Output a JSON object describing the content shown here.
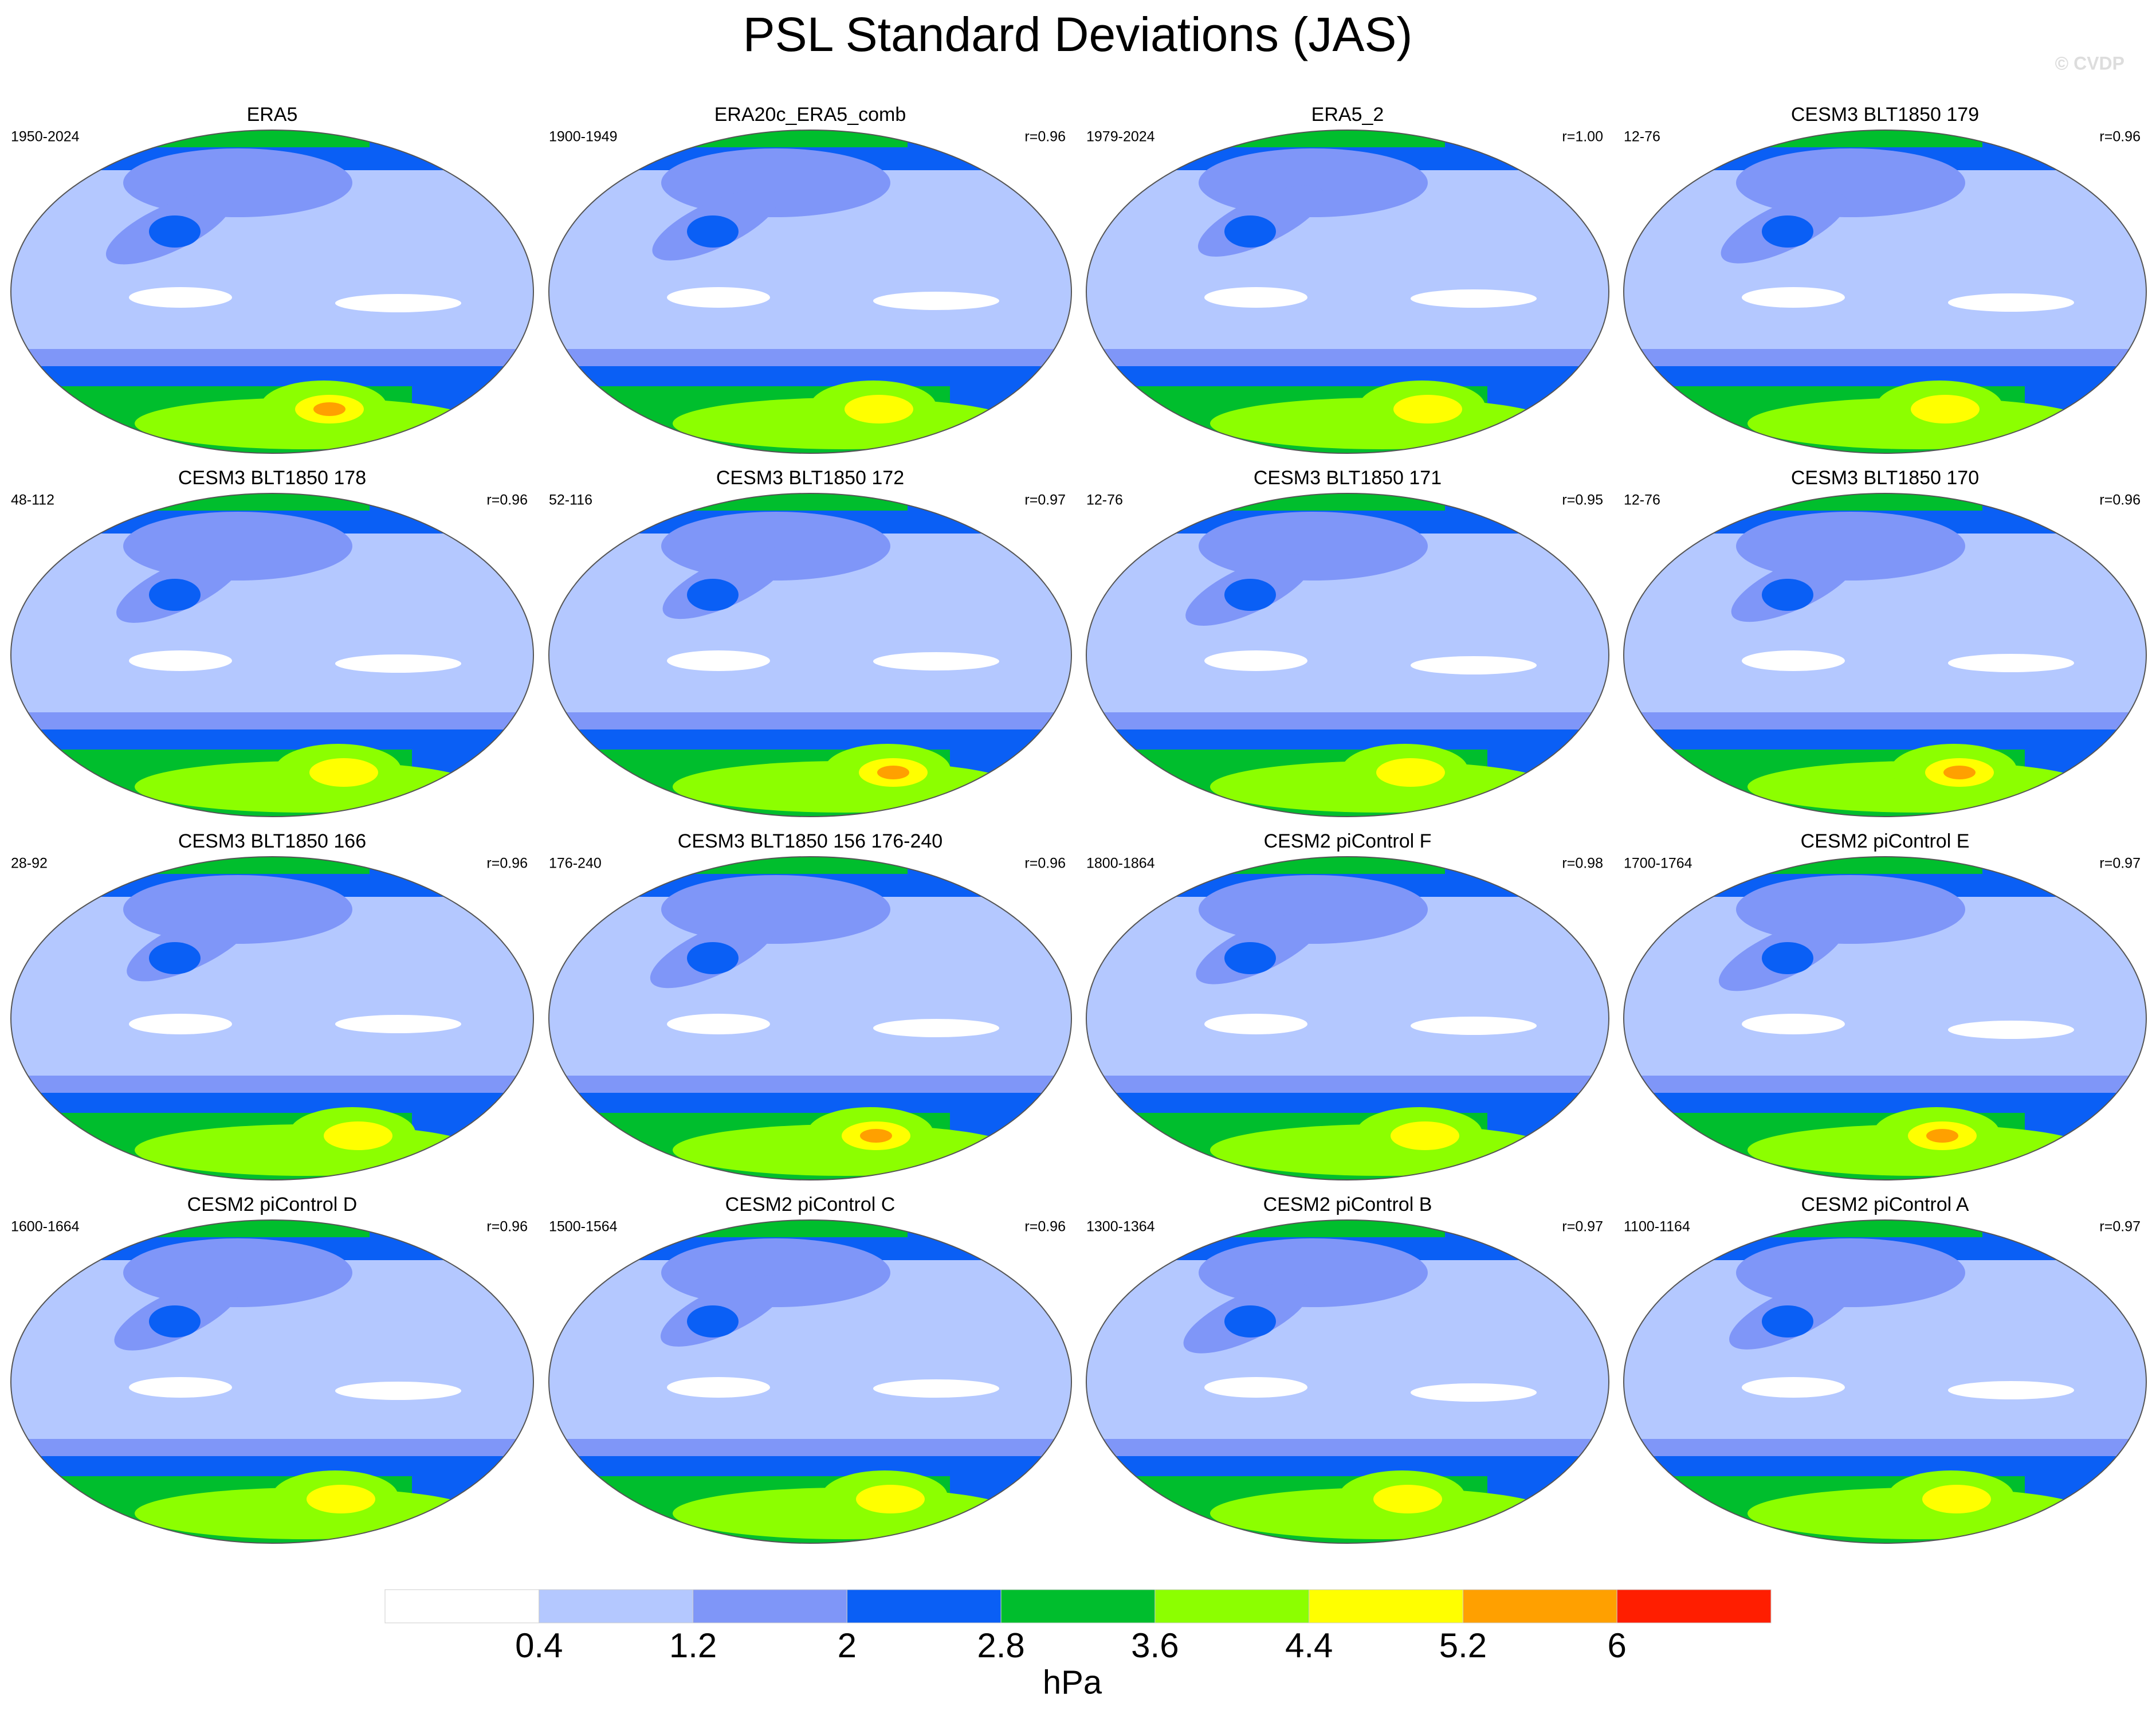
{
  "title": "PSL Standard Deviations (JAS)",
  "watermark": "© CVDP",
  "panels": [
    {
      "title": "ERA5",
      "period": "1950-2024"
    },
    {
      "title": "ERA20c_ERA5_comb",
      "period": "1900-1949",
      "r": "r=0.96"
    },
    {
      "title": "ERA5_2",
      "period": "1979-2024",
      "r": "r=1.00"
    },
    {
      "title": "CESM3 BLT1850 179",
      "period": "12-76",
      "r": "r=0.96"
    },
    {
      "title": "CESM3 BLT1850 178",
      "period": "48-112",
      "r": "r=0.96"
    },
    {
      "title": "CESM3 BLT1850 172",
      "period": "52-116",
      "r": "r=0.97"
    },
    {
      "title": "CESM3 BLT1850 171",
      "period": "12-76",
      "r": "r=0.95"
    },
    {
      "title": "CESM3 BLT1850 170",
      "period": "12-76",
      "r": "r=0.96"
    },
    {
      "title": "CESM3 BLT1850 166",
      "period": "28-92",
      "r": "r=0.96"
    },
    {
      "title": "CESM3 BLT1850 156 176-240",
      "period": "176-240",
      "r": "r=0.96"
    },
    {
      "title": "CESM2 piControl F",
      "period": "1800-1864",
      "r": "r=0.98"
    },
    {
      "title": "CESM2 piControl E",
      "period": "1700-1764",
      "r": "r=0.97"
    },
    {
      "title": "CESM2 piControl D",
      "period": "1600-1664",
      "r": "r=0.96"
    },
    {
      "title": "CESM2 piControl C",
      "period": "1500-1564",
      "r": "r=0.96"
    },
    {
      "title": "CESM2 piControl B",
      "period": "1300-1364",
      "r": "r=0.97"
    },
    {
      "title": "CESM2 piControl A",
      "period": "1100-1164",
      "r": "r=0.97"
    }
  ],
  "colorbar": {
    "levels": [
      0.4,
      1.2,
      2,
      2.8,
      3.6,
      4.4,
      5.2,
      6
    ],
    "colors": [
      "#ffffff",
      "#b4c8ff",
      "#7f96f8",
      "#0a5ff5",
      "#00be2d",
      "#8cff00",
      "#ffff00",
      "#ffa000",
      "#ff1e00"
    ],
    "label": "hPa"
  }
}
